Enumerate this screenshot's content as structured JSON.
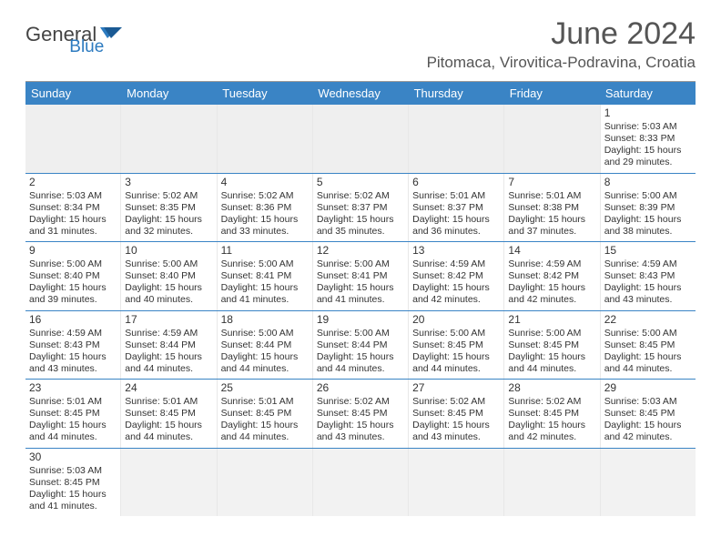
{
  "brand": {
    "part1": "General",
    "part2": "Blue"
  },
  "title": "June 2024",
  "location": "Pitomaca, Virovitica-Podravina, Croatia",
  "colors": {
    "header_bg": "#3a84c5",
    "header_text": "#ffffff",
    "rule": "#3a84c5",
    "empty_bg": "#f2f2f2",
    "brand_blue": "#2d7bc0",
    "text": "#333333"
  },
  "day_names": [
    "Sunday",
    "Monday",
    "Tuesday",
    "Wednesday",
    "Thursday",
    "Friday",
    "Saturday"
  ],
  "weeks": [
    [
      null,
      null,
      null,
      null,
      null,
      null,
      {
        "n": "1",
        "sunrise": "Sunrise: 5:03 AM",
        "sunset": "Sunset: 8:33 PM",
        "daylight": "Daylight: 15 hours and 29 minutes."
      }
    ],
    [
      {
        "n": "2",
        "sunrise": "Sunrise: 5:03 AM",
        "sunset": "Sunset: 8:34 PM",
        "daylight": "Daylight: 15 hours and 31 minutes."
      },
      {
        "n": "3",
        "sunrise": "Sunrise: 5:02 AM",
        "sunset": "Sunset: 8:35 PM",
        "daylight": "Daylight: 15 hours and 32 minutes."
      },
      {
        "n": "4",
        "sunrise": "Sunrise: 5:02 AM",
        "sunset": "Sunset: 8:36 PM",
        "daylight": "Daylight: 15 hours and 33 minutes."
      },
      {
        "n": "5",
        "sunrise": "Sunrise: 5:02 AM",
        "sunset": "Sunset: 8:37 PM",
        "daylight": "Daylight: 15 hours and 35 minutes."
      },
      {
        "n": "6",
        "sunrise": "Sunrise: 5:01 AM",
        "sunset": "Sunset: 8:37 PM",
        "daylight": "Daylight: 15 hours and 36 minutes."
      },
      {
        "n": "7",
        "sunrise": "Sunrise: 5:01 AM",
        "sunset": "Sunset: 8:38 PM",
        "daylight": "Daylight: 15 hours and 37 minutes."
      },
      {
        "n": "8",
        "sunrise": "Sunrise: 5:00 AM",
        "sunset": "Sunset: 8:39 PM",
        "daylight": "Daylight: 15 hours and 38 minutes."
      }
    ],
    [
      {
        "n": "9",
        "sunrise": "Sunrise: 5:00 AM",
        "sunset": "Sunset: 8:40 PM",
        "daylight": "Daylight: 15 hours and 39 minutes."
      },
      {
        "n": "10",
        "sunrise": "Sunrise: 5:00 AM",
        "sunset": "Sunset: 8:40 PM",
        "daylight": "Daylight: 15 hours and 40 minutes."
      },
      {
        "n": "11",
        "sunrise": "Sunrise: 5:00 AM",
        "sunset": "Sunset: 8:41 PM",
        "daylight": "Daylight: 15 hours and 41 minutes."
      },
      {
        "n": "12",
        "sunrise": "Sunrise: 5:00 AM",
        "sunset": "Sunset: 8:41 PM",
        "daylight": "Daylight: 15 hours and 41 minutes."
      },
      {
        "n": "13",
        "sunrise": "Sunrise: 4:59 AM",
        "sunset": "Sunset: 8:42 PM",
        "daylight": "Daylight: 15 hours and 42 minutes."
      },
      {
        "n": "14",
        "sunrise": "Sunrise: 4:59 AM",
        "sunset": "Sunset: 8:42 PM",
        "daylight": "Daylight: 15 hours and 42 minutes."
      },
      {
        "n": "15",
        "sunrise": "Sunrise: 4:59 AM",
        "sunset": "Sunset: 8:43 PM",
        "daylight": "Daylight: 15 hours and 43 minutes."
      }
    ],
    [
      {
        "n": "16",
        "sunrise": "Sunrise: 4:59 AM",
        "sunset": "Sunset: 8:43 PM",
        "daylight": "Daylight: 15 hours and 43 minutes."
      },
      {
        "n": "17",
        "sunrise": "Sunrise: 4:59 AM",
        "sunset": "Sunset: 8:44 PM",
        "daylight": "Daylight: 15 hours and 44 minutes."
      },
      {
        "n": "18",
        "sunrise": "Sunrise: 5:00 AM",
        "sunset": "Sunset: 8:44 PM",
        "daylight": "Daylight: 15 hours and 44 minutes."
      },
      {
        "n": "19",
        "sunrise": "Sunrise: 5:00 AM",
        "sunset": "Sunset: 8:44 PM",
        "daylight": "Daylight: 15 hours and 44 minutes."
      },
      {
        "n": "20",
        "sunrise": "Sunrise: 5:00 AM",
        "sunset": "Sunset: 8:45 PM",
        "daylight": "Daylight: 15 hours and 44 minutes."
      },
      {
        "n": "21",
        "sunrise": "Sunrise: 5:00 AM",
        "sunset": "Sunset: 8:45 PM",
        "daylight": "Daylight: 15 hours and 44 minutes."
      },
      {
        "n": "22",
        "sunrise": "Sunrise: 5:00 AM",
        "sunset": "Sunset: 8:45 PM",
        "daylight": "Daylight: 15 hours and 44 minutes."
      }
    ],
    [
      {
        "n": "23",
        "sunrise": "Sunrise: 5:01 AM",
        "sunset": "Sunset: 8:45 PM",
        "daylight": "Daylight: 15 hours and 44 minutes."
      },
      {
        "n": "24",
        "sunrise": "Sunrise: 5:01 AM",
        "sunset": "Sunset: 8:45 PM",
        "daylight": "Daylight: 15 hours and 44 minutes."
      },
      {
        "n": "25",
        "sunrise": "Sunrise: 5:01 AM",
        "sunset": "Sunset: 8:45 PM",
        "daylight": "Daylight: 15 hours and 44 minutes."
      },
      {
        "n": "26",
        "sunrise": "Sunrise: 5:02 AM",
        "sunset": "Sunset: 8:45 PM",
        "daylight": "Daylight: 15 hours and 43 minutes."
      },
      {
        "n": "27",
        "sunrise": "Sunrise: 5:02 AM",
        "sunset": "Sunset: 8:45 PM",
        "daylight": "Daylight: 15 hours and 43 minutes."
      },
      {
        "n": "28",
        "sunrise": "Sunrise: 5:02 AM",
        "sunset": "Sunset: 8:45 PM",
        "daylight": "Daylight: 15 hours and 42 minutes."
      },
      {
        "n": "29",
        "sunrise": "Sunrise: 5:03 AM",
        "sunset": "Sunset: 8:45 PM",
        "daylight": "Daylight: 15 hours and 42 minutes."
      }
    ],
    [
      {
        "n": "30",
        "sunrise": "Sunrise: 5:03 AM",
        "sunset": "Sunset: 8:45 PM",
        "daylight": "Daylight: 15 hours and 41 minutes."
      },
      null,
      null,
      null,
      null,
      null,
      null
    ]
  ]
}
